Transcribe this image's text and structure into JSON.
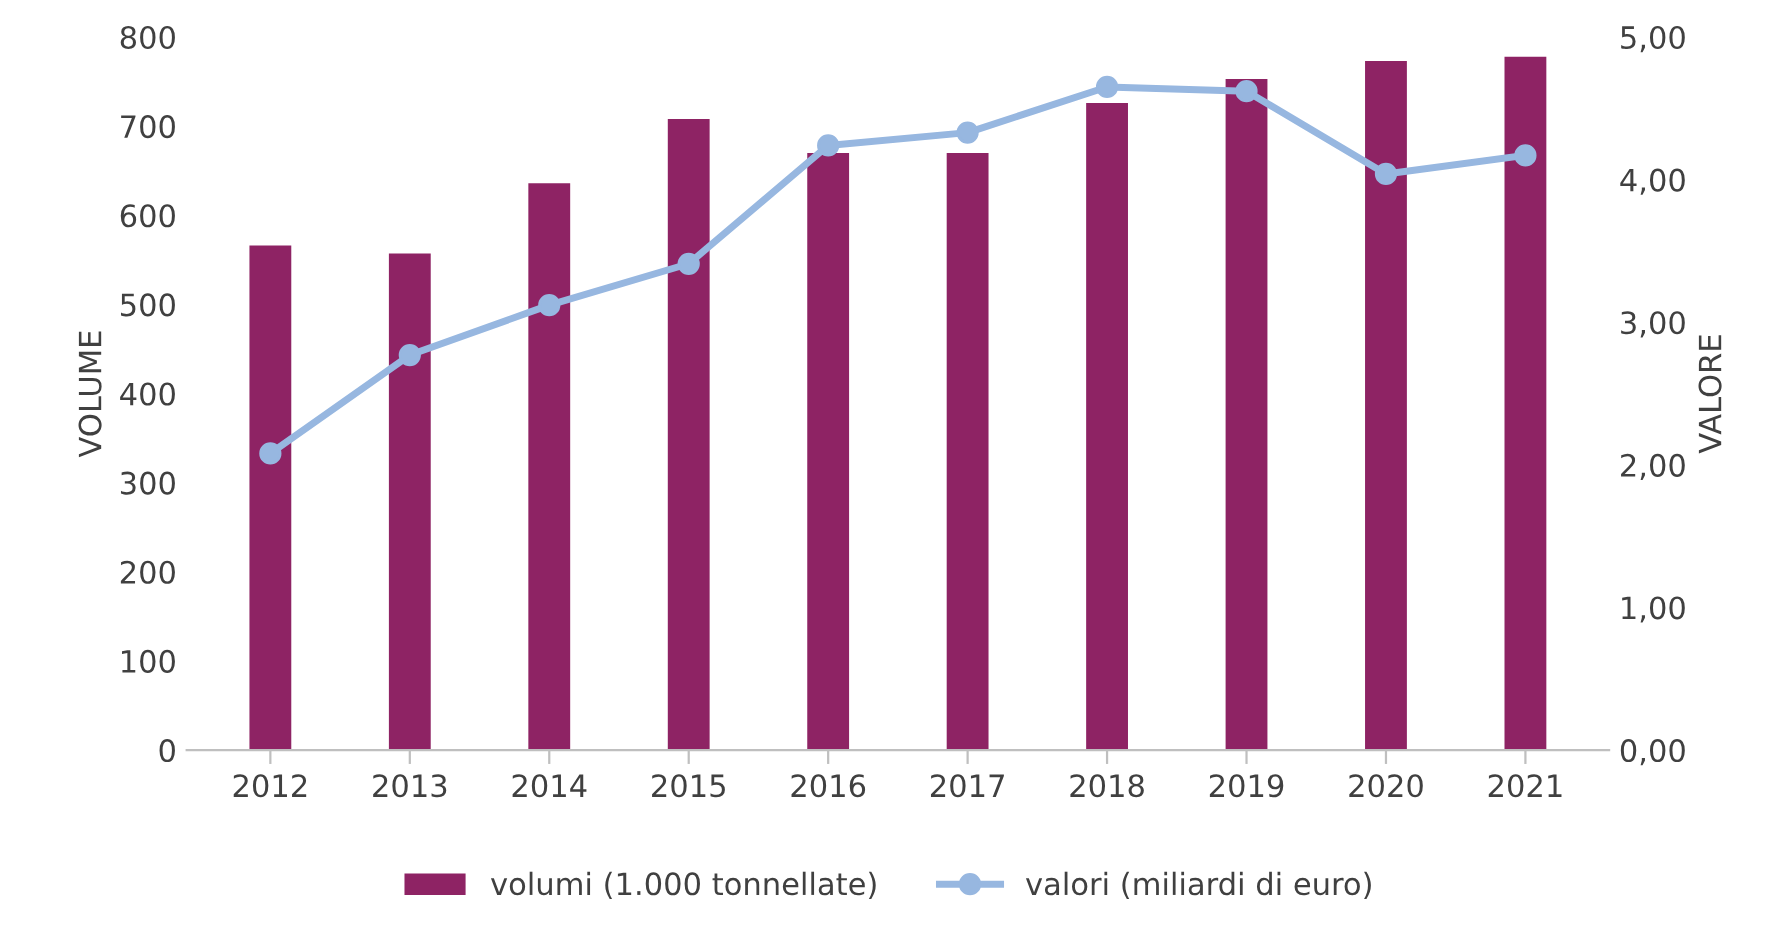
{
  "chart_data": {
    "type": "bar",
    "ylabel": "VOLUME",
    "y2label": "VALORE",
    "categories": [
      "2012",
      "2013",
      "2014",
      "2015",
      "2016",
      "2017",
      "2018",
      "2019",
      "2020",
      "2021"
    ],
    "series": [
      {
        "name": "volumi (1.000 tonnellate)",
        "color": "#8e2364",
        "values": [
          566,
          557,
          636,
          708,
          670,
          670,
          726,
          753,
          773,
          778
        ]
      },
      {
        "name": "valori (miliardi di euro)",
        "type": "line",
        "axis": "y2",
        "color": "#97b7e0",
        "marker": "circle",
        "values": [
          2.08,
          2.77,
          3.12,
          3.41,
          4.24,
          4.33,
          4.65,
          4.62,
          4.04,
          4.17
        ]
      }
    ],
    "ylim": [
      0,
      800
    ],
    "yticks": [
      0,
      100,
      200,
      300,
      400,
      500,
      600,
      700,
      800
    ],
    "y2lim": [
      0,
      5
    ],
    "y2ticks": [
      {
        "value": 0,
        "label": "0,00"
      },
      {
        "value": 1,
        "label": "1,00"
      },
      {
        "value": 2,
        "label": "2,00"
      },
      {
        "value": 3,
        "label": "3,00"
      },
      {
        "value": 4,
        "label": "4,00"
      },
      {
        "value": 5,
        "label": "5,00"
      }
    ],
    "grid": false,
    "legend": "bottom"
  }
}
